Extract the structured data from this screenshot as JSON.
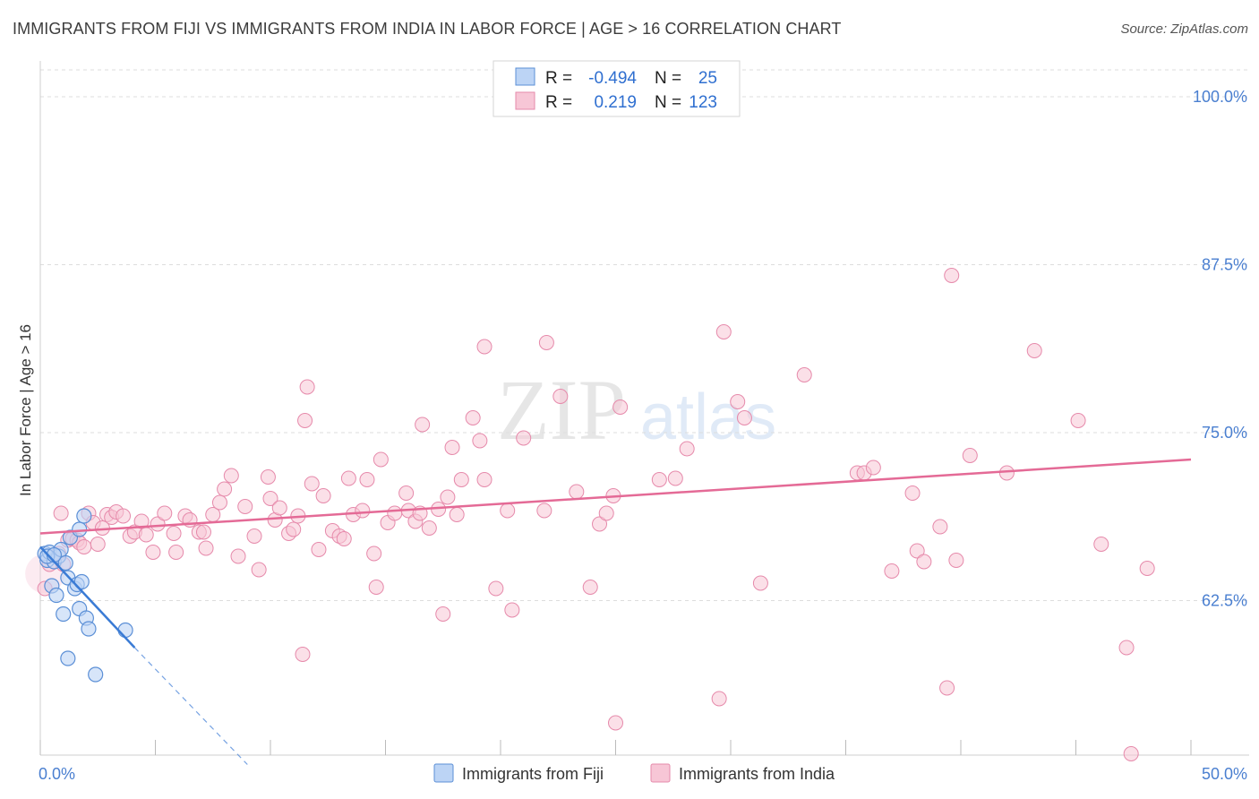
{
  "title": "IMMIGRANTS FROM FIJI VS IMMIGRANTS FROM INDIA IN LABOR FORCE | AGE > 16 CORRELATION CHART",
  "source": "Source: ZipAtlas.com",
  "watermark": {
    "zip": "ZIP",
    "atlas": "atlas"
  },
  "colors": {
    "fiji_fill": "#bcd4f5",
    "fiji_stroke": "#5b8fd6",
    "fiji_line": "#3a7bd5",
    "india_fill": "#f7c6d6",
    "india_stroke": "#e68aab",
    "india_line": "#e46a96",
    "axis_text": "#4a7fd0",
    "grid": "#dddddd"
  },
  "legend": {
    "rows": [
      {
        "series": "fiji",
        "r_label": "R =",
        "r_value": "-0.494",
        "n_label": "N =",
        "n_value": "25"
      },
      {
        "series": "india",
        "r_label": "R =",
        "r_value": "0.219",
        "n_label": "N =",
        "n_value": "123"
      }
    ]
  },
  "bottom_legend": [
    "Immigrants from Fiji",
    "Immigrants from India"
  ],
  "chart_data": {
    "type": "scatter",
    "title": "IMMIGRANTS FROM FIJI VS IMMIGRANTS FROM INDIA IN LABOR FORCE | AGE > 16 CORRELATION CHART",
    "xlabel": "",
    "ylabel": "In Labor Force | Age > 16",
    "xlim": [
      0,
      50
    ],
    "ylim": [
      51,
      102
    ],
    "x_tick_labels": [
      {
        "value": 0,
        "label": "0.0%"
      },
      {
        "value": 50,
        "label": "50.0%"
      }
    ],
    "y_tick_labels": [
      {
        "value": 62.5,
        "label": "62.5%"
      },
      {
        "value": 75,
        "label": "75.0%"
      },
      {
        "value": 87.5,
        "label": "87.5%"
      },
      {
        "value": 100,
        "label": "100.0%"
      }
    ],
    "series": [
      {
        "name": "Immigrants from Fiji",
        "color": "#5b8fd6",
        "trend": {
          "x": [
            0,
            4.1
          ],
          "y": [
            66.5,
            59.0
          ],
          "dashed_extension_to": [
            9.0,
            50.3
          ]
        },
        "points": [
          [
            0.2,
            66.0
          ],
          [
            0.3,
            65.5
          ],
          [
            0.4,
            66.1
          ],
          [
            0.5,
            63.6
          ],
          [
            0.6,
            65.4
          ],
          [
            0.7,
            62.9
          ],
          [
            0.8,
            65.8
          ],
          [
            0.9,
            66.3
          ],
          [
            1.0,
            61.5
          ],
          [
            1.1,
            65.3
          ],
          [
            1.2,
            58.2
          ],
          [
            1.2,
            64.2
          ],
          [
            1.3,
            67.2
          ],
          [
            1.5,
            63.4
          ],
          [
            1.6,
            63.7
          ],
          [
            1.7,
            61.9
          ],
          [
            1.7,
            67.8
          ],
          [
            1.8,
            63.9
          ],
          [
            1.9,
            68.8
          ],
          [
            2.0,
            61.2
          ],
          [
            2.1,
            60.4
          ],
          [
            2.4,
            57.0
          ],
          [
            3.7,
            60.3
          ],
          [
            0.3,
            65.8
          ],
          [
            0.6,
            65.9
          ]
        ]
      },
      {
        "name": "Immigrants from India",
        "color": "#e68aab",
        "trend": {
          "x": [
            0,
            50
          ],
          "y": [
            67.5,
            73.0
          ]
        },
        "points": [
          [
            0.2,
            63.4
          ],
          [
            0.4,
            65.2
          ],
          [
            0.8,
            66.0
          ],
          [
            1.0,
            65.2
          ],
          [
            1.2,
            67.0
          ],
          [
            1.4,
            67.1
          ],
          [
            1.6,
            67.0
          ],
          [
            1.7,
            66.8
          ],
          [
            1.9,
            66.5
          ],
          [
            2.1,
            69.0
          ],
          [
            2.3,
            68.3
          ],
          [
            2.5,
            66.7
          ],
          [
            2.7,
            67.9
          ],
          [
            2.9,
            68.9
          ],
          [
            3.1,
            68.7
          ],
          [
            3.3,
            69.1
          ],
          [
            3.6,
            68.8
          ],
          [
            3.9,
            67.3
          ],
          [
            4.1,
            67.6
          ],
          [
            4.4,
            68.4
          ],
          [
            4.6,
            67.4
          ],
          [
            4.9,
            66.1
          ],
          [
            5.1,
            68.2
          ],
          [
            5.4,
            69.0
          ],
          [
            5.8,
            67.5
          ],
          [
            5.9,
            66.1
          ],
          [
            6.3,
            68.8
          ],
          [
            6.5,
            68.5
          ],
          [
            6.9,
            67.6
          ],
          [
            7.1,
            67.6
          ],
          [
            7.2,
            66.4
          ],
          [
            7.5,
            68.9
          ],
          [
            7.8,
            69.8
          ],
          [
            8.0,
            70.8
          ],
          [
            8.3,
            71.8
          ],
          [
            8.6,
            65.8
          ],
          [
            8.9,
            69.5
          ],
          [
            9.3,
            67.3
          ],
          [
            9.5,
            64.8
          ],
          [
            9.9,
            71.7
          ],
          [
            10.0,
            70.1
          ],
          [
            10.2,
            68.5
          ],
          [
            10.4,
            69.4
          ],
          [
            10.8,
            67.5
          ],
          [
            11.0,
            67.8
          ],
          [
            11.2,
            68.8
          ],
          [
            11.4,
            58.5
          ],
          [
            11.5,
            75.9
          ],
          [
            11.6,
            78.4
          ],
          [
            11.8,
            71.2
          ],
          [
            12.1,
            66.3
          ],
          [
            12.3,
            70.3
          ],
          [
            12.7,
            67.7
          ],
          [
            13.0,
            67.3
          ],
          [
            13.2,
            67.1
          ],
          [
            13.4,
            71.6
          ],
          [
            13.6,
            68.9
          ],
          [
            14.0,
            69.2
          ],
          [
            14.2,
            71.5
          ],
          [
            14.5,
            66.0
          ],
          [
            14.6,
            63.5
          ],
          [
            14.8,
            73.0
          ],
          [
            15.1,
            68.3
          ],
          [
            15.4,
            69.0
          ],
          [
            15.9,
            70.5
          ],
          [
            16.0,
            69.2
          ],
          [
            16.3,
            68.4
          ],
          [
            16.5,
            69.0
          ],
          [
            16.6,
            75.6
          ],
          [
            16.9,
            67.9
          ],
          [
            17.3,
            69.3
          ],
          [
            17.5,
            61.5
          ],
          [
            17.7,
            70.2
          ],
          [
            17.9,
            73.9
          ],
          [
            18.1,
            68.9
          ],
          [
            18.3,
            71.5
          ],
          [
            18.8,
            76.1
          ],
          [
            19.1,
            74.4
          ],
          [
            19.3,
            71.5
          ],
          [
            19.3,
            81.4
          ],
          [
            19.8,
            63.4
          ],
          [
            20.3,
            69.2
          ],
          [
            20.5,
            61.8
          ],
          [
            21.0,
            74.6
          ],
          [
            21.9,
            69.2
          ],
          [
            22.0,
            81.7
          ],
          [
            22.6,
            77.7
          ],
          [
            23.3,
            70.6
          ],
          [
            23.9,
            63.5
          ],
          [
            24.3,
            68.2
          ],
          [
            24.6,
            69.0
          ],
          [
            24.9,
            70.3
          ],
          [
            25.2,
            76.9
          ],
          [
            25.0,
            53.4
          ],
          [
            26.9,
            71.5
          ],
          [
            27.6,
            71.6
          ],
          [
            28.1,
            73.8
          ],
          [
            29.5,
            55.2
          ],
          [
            29.7,
            82.5
          ],
          [
            30.3,
            77.3
          ],
          [
            30.6,
            76.1
          ],
          [
            31.3,
            63.8
          ],
          [
            33.2,
            79.3
          ],
          [
            35.5,
            72.0
          ],
          [
            35.8,
            72.0
          ],
          [
            36.2,
            72.4
          ],
          [
            37.0,
            64.7
          ],
          [
            37.9,
            70.5
          ],
          [
            38.1,
            66.2
          ],
          [
            38.4,
            65.4
          ],
          [
            39.1,
            68.0
          ],
          [
            39.4,
            56.0
          ],
          [
            39.8,
            65.5
          ],
          [
            40.4,
            73.3
          ],
          [
            42.0,
            72.0
          ],
          [
            43.2,
            81.1
          ],
          [
            45.1,
            75.9
          ],
          [
            46.1,
            66.7
          ],
          [
            47.2,
            59.0
          ],
          [
            48.1,
            64.9
          ],
          [
            0.9,
            69.0
          ],
          [
            47.4,
            51.1
          ],
          [
            39.6,
            86.7
          ]
        ]
      }
    ]
  }
}
